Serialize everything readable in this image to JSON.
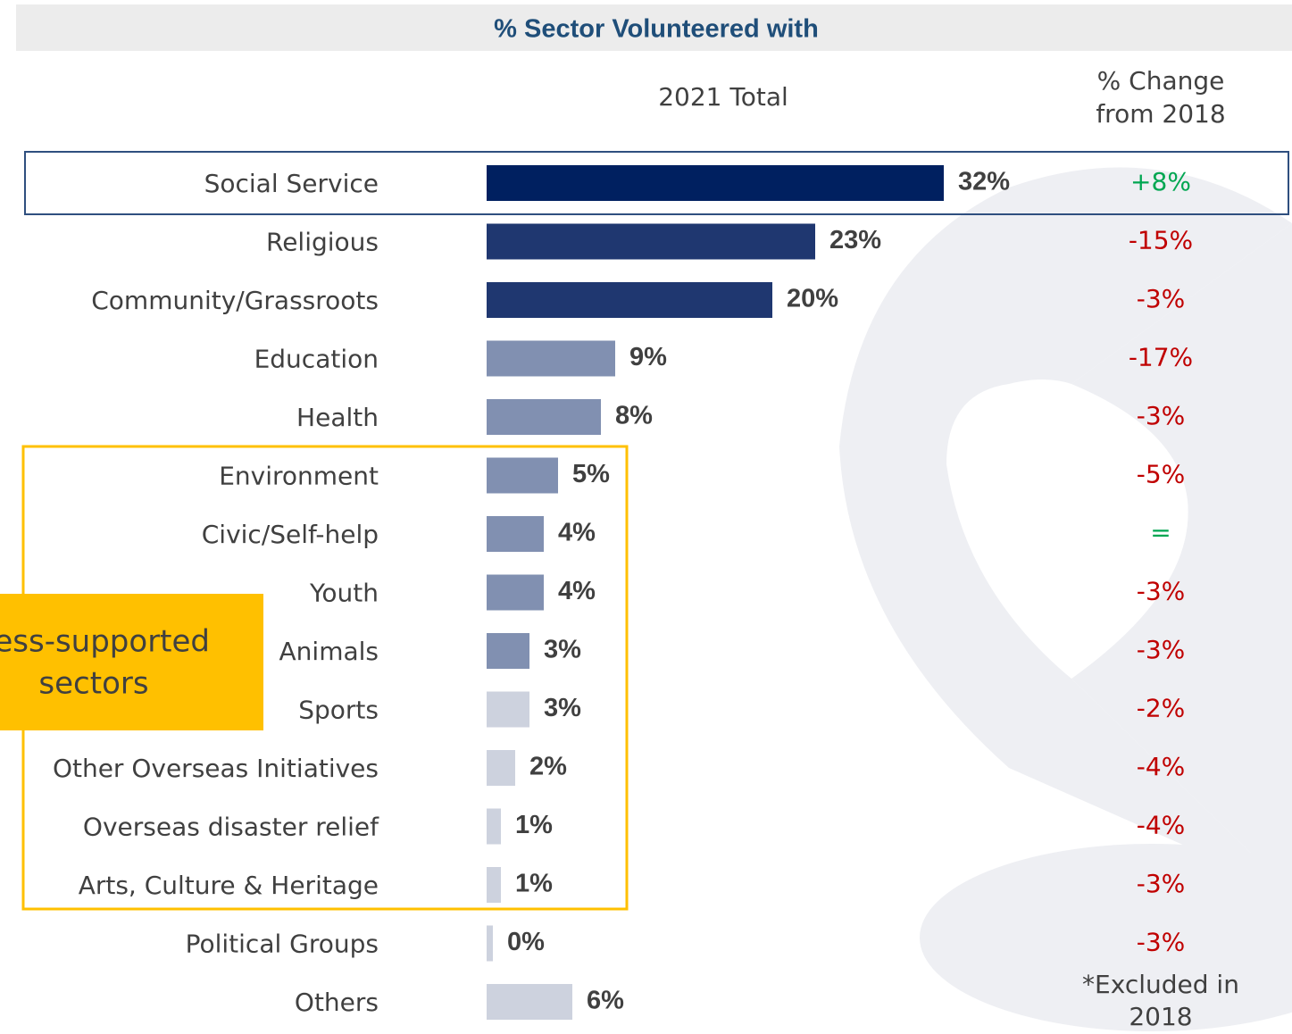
{
  "chart_data": {
    "type": "bar",
    "orientation": "horizontal",
    "title": "% Sector Volunteered with",
    "value_header": "2021 Total",
    "change_header": [
      "% Change",
      "from 2018"
    ],
    "categories": [
      "Social Service",
      "Religious",
      "Community/Grassroots",
      "Education",
      "Health",
      "Environment",
      "Civic/Self-help",
      "Youth",
      "Animals",
      "Sports",
      "Other Overseas Initiatives",
      "Overseas disaster relief",
      "Arts, Culture & Heritage",
      "Political Groups",
      "Others"
    ],
    "values": [
      32,
      23,
      20,
      9,
      8,
      5,
      4,
      4,
      3,
      3,
      2,
      1,
      1,
      0,
      6
    ],
    "value_labels": [
      "32%",
      "23%",
      "20%",
      "9%",
      "8%",
      "5%",
      "4%",
      "4%",
      "3%",
      "3%",
      "2%",
      "1%",
      "1%",
      "0%",
      "6%"
    ],
    "colors": [
      "#002060",
      "#1f3770",
      "#1f3770",
      "#8190b1",
      "#8190b1",
      "#8190b1",
      "#8190b1",
      "#8190b1",
      "#8190b1",
      "#cdd2de",
      "#cdd2de",
      "#cdd2de",
      "#cdd2de",
      "#cdd2de",
      "#cdd2de"
    ],
    "changes": [
      [
        "+8%"
      ],
      [
        "-15%"
      ],
      [
        "-3%"
      ],
      [
        "-17%"
      ],
      [
        "-3%"
      ],
      [
        "-5%"
      ],
      [
        "="
      ],
      [
        "-3%"
      ],
      [
        "-3%"
      ],
      [
        "-2%"
      ],
      [
        "-4%"
      ],
      [
        "-4%"
      ],
      [
        "-3%"
      ],
      [
        "-3%"
      ],
      [
        "*Excluded in",
        "2018"
      ]
    ],
    "change_colors": [
      "#00a651",
      "#c00000",
      "#c00000",
      "#c00000",
      "#c00000",
      "#c00000",
      "#00a651",
      "#c00000",
      "#c00000",
      "#c00000",
      "#c00000",
      "#c00000",
      "#c00000",
      "#c00000",
      "#404040"
    ],
    "callout": [
      "Less-supported",
      "sectors"
    ]
  }
}
